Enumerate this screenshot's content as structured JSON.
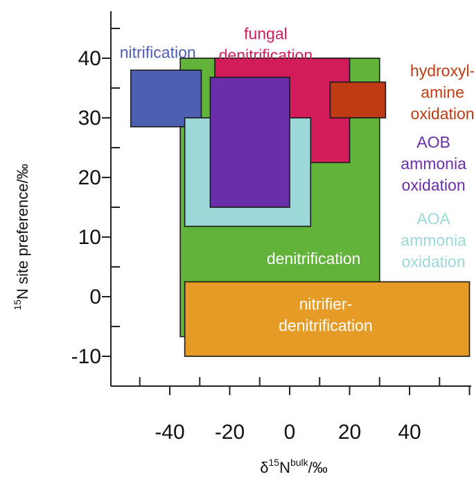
{
  "chart_data": {
    "type": "range-box",
    "xlabel": {
      "prefix": "δ",
      "sup": "15",
      "main": "N",
      "sup2": "bulk",
      "suffix": "/‰"
    },
    "ylabel": {
      "sup": "15",
      "main": "N site preference/‰"
    },
    "xlim": [
      -59,
      57
    ],
    "ylim": [
      -15,
      47
    ],
    "xticks": [
      -40,
      -20,
      0,
      20,
      40
    ],
    "yticks": [
      -10,
      0,
      10,
      20,
      30,
      40
    ],
    "grid": false,
    "regions": [
      {
        "name": "denitrification",
        "color": "#62b33a",
        "x": [
          -36.5,
          30
        ],
        "y": [
          -6.7,
          40
        ],
        "label": [
          "denitrification"
        ],
        "label_color": "#ffffff",
        "label_at": [
          8,
          6.4
        ]
      },
      {
        "name": "fungal denitrification",
        "color": "#d21d5a",
        "x": [
          -25,
          20
        ],
        "y": [
          22.5,
          40
        ],
        "label": [
          "fungal",
          "denitrification"
        ],
        "label_color": "#d21d5a",
        "label_at": [
          -8,
          42.3
        ]
      },
      {
        "name": "nitrification",
        "color": "#4d5fb0",
        "x": [
          -53,
          -29.5
        ],
        "y": [
          28.5,
          38
        ],
        "label": [
          "nitrification"
        ],
        "label_color": "#4d5fb0",
        "label_at": [
          -44,
          41
        ]
      },
      {
        "name": "hydroxylamine oxidation",
        "color": "#bf3b13",
        "x": [
          13.5,
          32
        ],
        "y": [
          30,
          36
        ],
        "label": [
          "hydroxyl-",
          "amine",
          "oxidation"
        ],
        "label_color": "#bf3b13",
        "label_at": [
          51,
          34.3
        ]
      },
      {
        "name": "AOA ammonia oxidation",
        "color": "#9dd8d8",
        "x": [
          -35,
          7
        ],
        "y": [
          11.8,
          30
        ],
        "label": [
          "AOA",
          "ammonia",
          "oxidation"
        ],
        "label_color": "#9dd8d8",
        "label_at": [
          48,
          9.5
        ]
      },
      {
        "name": "AOB ammonia oxidation",
        "color": "#6a2fa8",
        "x": [
          -26.5,
          0
        ],
        "y": [
          15,
          36.8
        ],
        "label": [
          "AOB",
          "ammonia",
          "oxidation"
        ],
        "label_color": "#6a2fa8",
        "label_at": [
          48,
          22.3
        ]
      },
      {
        "name": "nitrifier-denitrification",
        "color": "#e79b27",
        "x": [
          -35,
          60
        ],
        "y": [
          -10,
          2.5
        ],
        "label": [
          "nitrifier-",
          "denitrification"
        ],
        "label_color": "#ffffff",
        "label_at": [
          12,
          -3
        ]
      }
    ]
  }
}
